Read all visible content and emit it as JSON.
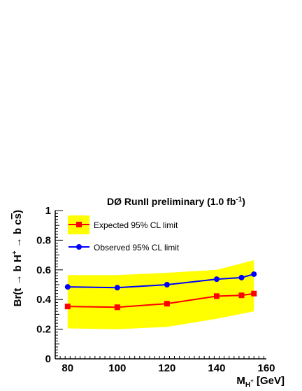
{
  "chart_data": {
    "type": "line",
    "title": "DØ RunII preliminary (1.0 fb",
    "title_sup": "-1",
    "title_end": ")",
    "xlabel": "M",
    "xlabel_sub": "H",
    "xlabel_subsup": "+",
    "xlabel_end": " [GeV]",
    "ylabel_parts": [
      "Br(t ",
      "→",
      " b H",
      "+",
      " ",
      "→",
      " b c",
      "s",
      ")"
    ],
    "xlim": [
      75,
      160
    ],
    "ylim": [
      0,
      1
    ],
    "x_ticks": [
      80,
      100,
      120,
      140,
      160
    ],
    "x_tick_labels": [
      "80",
      "100",
      "120",
      "140",
      "160"
    ],
    "y_ticks": [
      0,
      0.2,
      0.4,
      0.6,
      0.8,
      1
    ],
    "y_tick_labels": [
      "0",
      "0.2",
      "0.4",
      "0.6",
      "0.8",
      "1"
    ],
    "band": {
      "color": "#ffff00",
      "x": [
        80,
        100,
        120,
        140,
        155
      ],
      "upper": [
        0.565,
        0.565,
        0.58,
        0.6,
        0.665
      ],
      "lower": [
        0.205,
        0.2,
        0.215,
        0.27,
        0.32
      ]
    },
    "series": [
      {
        "name": "Expected 95% CL limit",
        "color": "#ff0000",
        "marker": "square",
        "x": [
          80,
          100,
          120,
          140,
          150,
          155
        ],
        "y": [
          0.353,
          0.348,
          0.372,
          0.423,
          0.428,
          0.44
        ]
      },
      {
        "name": "Observed 95% CL limit",
        "color": "#0000ff",
        "marker": "circle",
        "x": [
          80,
          100,
          120,
          140,
          150,
          155
        ],
        "y": [
          0.485,
          0.48,
          0.5,
          0.537,
          0.548,
          0.571
        ]
      }
    ],
    "legend_placement": "top-left",
    "grid": false
  }
}
